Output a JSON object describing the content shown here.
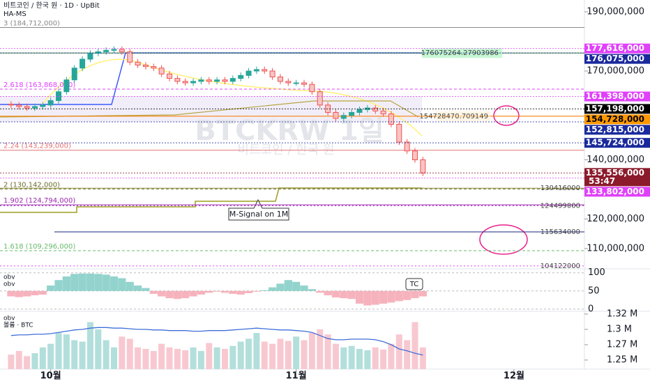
{
  "header": {
    "title": "비트코인 / 한국 원 · 1D · UpBit",
    "indicator": "HA-MS",
    "watermark": "BTCKRW 1일",
    "watermark_sub": "비트코인 / 한국 원"
  },
  "chart_data": {
    "type": "candlestick",
    "x": [
      -5,
      -4,
      -3,
      -2,
      -1,
      0,
      1,
      2,
      3,
      4,
      5,
      6,
      7,
      8,
      9,
      10,
      11,
      12,
      13,
      14,
      15,
      16,
      17,
      18,
      19,
      20,
      21,
      22,
      23,
      24,
      25,
      26,
      27,
      28,
      29,
      30,
      31,
      32,
      33,
      34,
      35,
      36,
      37,
      38,
      39,
      40,
      41,
      42,
      43,
      44,
      45,
      46,
      47
    ],
    "open": [
      158800000,
      158500000,
      158000000,
      157500000,
      158000000,
      158500000,
      160000000,
      163000000,
      167000000,
      171000000,
      174000000,
      176000000,
      176500000,
      177000000,
      177300000,
      176500000,
      173000000,
      172000000,
      171500000,
      171000000,
      169000000,
      167500000,
      166500000,
      166000000,
      166500000,
      167000000,
      166500000,
      167000000,
      166500000,
      167500000,
      168500000,
      170000000,
      170500000,
      170000000,
      168000000,
      166500000,
      166000000,
      166000000,
      165500000,
      163000000,
      158500000,
      156000000,
      154000000,
      155000000,
      156000000,
      157000000,
      157500000,
      156500000,
      155500000,
      152000000,
      146000000,
      143000000,
      140000000
    ],
    "high": [
      159800000,
      159500000,
      159000000,
      159000000,
      159500000,
      161000000,
      164000000,
      168000000,
      172000000,
      175000000,
      177000000,
      177500000,
      178000000,
      178300000,
      178300000,
      177500000,
      174000000,
      173000000,
      172500000,
      172000000,
      170000000,
      168500000,
      167500000,
      167500000,
      168000000,
      168000000,
      168000000,
      168000000,
      168500000,
      169500000,
      171000000,
      171500000,
      171500000,
      171000000,
      169000000,
      167500000,
      167000000,
      167000000,
      166500000,
      164000000,
      159500000,
      157000000,
      156000000,
      157000000,
      158000000,
      158500000,
      158500000,
      157500000,
      156500000,
      153000000,
      147000000,
      144000000,
      141000000
    ],
    "low": [
      157500000,
      157000000,
      156500000,
      156500000,
      157000000,
      157500000,
      159000000,
      162000000,
      166000000,
      170000000,
      173000000,
      175000000,
      175500000,
      176000000,
      175500000,
      172000000,
      171000000,
      170500000,
      170000000,
      168000000,
      166500000,
      165500000,
      165000000,
      165000000,
      165500000,
      165500000,
      165500000,
      165500000,
      165500000,
      166500000,
      167500000,
      169000000,
      169000000,
      167000000,
      165500000,
      165000000,
      165000000,
      164500000,
      162000000,
      157500000,
      155000000,
      153000000,
      153000000,
      154000000,
      155000000,
      156000000,
      155500000,
      154500000,
      151000000,
      145000000,
      142000000,
      139000000,
      134500000
    ],
    "close": [
      158500000,
      158000000,
      157500000,
      158000000,
      158500000,
      160000000,
      163000000,
      167000000,
      171000000,
      174000000,
      176000000,
      176500000,
      177000000,
      177300000,
      176500000,
      173000000,
      172000000,
      171500000,
      171000000,
      169000000,
      167500000,
      166500000,
      166000000,
      166500000,
      167000000,
      166500000,
      167000000,
      166500000,
      167500000,
      168500000,
      170000000,
      170500000,
      170000000,
      168000000,
      166500000,
      166000000,
      166000000,
      165500000,
      163000000,
      158500000,
      156000000,
      154000000,
      155000000,
      156000000,
      157000000,
      157500000,
      156500000,
      155500000,
      152000000,
      146000000,
      143000000,
      140000000,
      135500000
    ],
    "up_color": "#26a69a",
    "down_color": "#ef5350",
    "xlim": [
      -6.4,
      67.4
    ],
    "xticks": [
      {
        "value": 0,
        "label": "10월"
      },
      {
        "value": 31,
        "label": "11월"
      },
      {
        "value": 58.5,
        "label": "12월"
      }
    ],
    "ylim": [
      103400000,
      194000000
    ],
    "yticks": [
      {
        "value": 190000000,
        "label": "190,000,000"
      },
      {
        "value": 170000000,
        "label": "170,000,000"
      },
      {
        "value": 150000000,
        "label": "150,000,000"
      },
      {
        "value": 140000000,
        "label": "140,000,000"
      },
      {
        "value": 120000000,
        "label": "120,000,000"
      },
      {
        "value": 110000000,
        "label": "110,000,000"
      }
    ],
    "price_tags": [
      {
        "value": 177616000,
        "label": "177,616,000",
        "color": "#e040fb"
      },
      {
        "value": 176075000,
        "label": "176,075,000",
        "color": "#1a2a9c"
      },
      {
        "value": 161398000,
        "label": "161,398,000",
        "color": "#e040fb"
      },
      {
        "value": 157198000,
        "label": "157,198,000",
        "color": "#000000"
      },
      {
        "value": 154728000,
        "label": "154,728,000",
        "color": "#ff9800"
      },
      {
        "value": 152815000,
        "label": "152,815,000",
        "color": "#1a2a9c"
      },
      {
        "value": 145724000,
        "label": "145,724,000",
        "color": "#1a2a9c"
      },
      {
        "value": 135556000,
        "label": "135,556,000",
        "color": "#8b1a2b",
        "countdown": "53:47"
      },
      {
        "value": 133802000,
        "label": "133,802,000",
        "color": "#e040fb"
      }
    ],
    "line_labels": [
      176075264.27903986,
      154728470.709149,
      130416000,
      124499000,
      115634000,
      104122000
    ],
    "line_colors": [
      "#2e7d32",
      "#ef6c00",
      "#8d8d3a",
      "#9c27b0",
      "#1a237e",
      "#e040fb"
    ],
    "fib_levels": [
      {
        "value": 184712000,
        "label": "3 (184,712,000)"
      },
      {
        "value": 163868000,
        "label": "2.618 (163,868,000)"
      },
      {
        "value": 143239000,
        "label": "2.24 (143,239,000)"
      },
      {
        "value": 130142000,
        "label": "2 (130,142,000)"
      },
      {
        "value": 124794000,
        "label": "1.902 (124,794,000)"
      },
      {
        "value": 109296000,
        "label": "1.618 (109,296,000)"
      }
    ],
    "fib_colors": [
      "#888888",
      "#e040fb",
      "#e57373",
      "#6d6d2b",
      "#9c27b0",
      "#66bb6a"
    ],
    "annotation": "M-Signal on 1M",
    "oscillator": {
      "labels": [
        "obv",
        "obv"
      ],
      "ylim": [
        -6,
        111
      ],
      "yticks": [
        100,
        50,
        0
      ],
      "baseline": 50,
      "note": "TC",
      "values": [
        35,
        33,
        35,
        38,
        40,
        65,
        80,
        90,
        97,
        98,
        98,
        97,
        95,
        90,
        85,
        75,
        65,
        58,
        42,
        35,
        30,
        28,
        30,
        35,
        40,
        45,
        48,
        45,
        42,
        40,
        44,
        48,
        52,
        60,
        70,
        80,
        75,
        65,
        55,
        45,
        38,
        32,
        30,
        28,
        15,
        10,
        12,
        15,
        18,
        22,
        25,
        30,
        35
      ]
    },
    "volume": {
      "labels": [
        "obv",
        "볼륨 · BTC"
      ],
      "ylim": [
        1230200,
        1324500
      ],
      "yticks": [
        {
          "value": 1320000,
          "label": "1.32 M"
        },
        {
          "value": 1295000,
          "label": "1.3 M"
        },
        {
          "value": 1270000,
          "label": "1.27 M"
        },
        {
          "value": 1245000,
          "label": "1.25 M"
        }
      ],
      "bar_ylim": [
        0,
        8000
      ],
      "bars": [
        2000,
        2500,
        1800,
        2200,
        3000,
        3500,
        5000,
        4800,
        4000,
        3800,
        6500,
        5500,
        4000,
        3000,
        4500,
        4200,
        3000,
        2800,
        2500,
        3500,
        3000,
        2800,
        2600,
        3000,
        2500,
        3600,
        3000,
        2800,
        3200,
        3800,
        4200,
        5000,
        3800,
        3500,
        4200,
        3900,
        4500,
        4000,
        5000,
        5500,
        4800,
        3500,
        3000,
        3200,
        2800,
        2600,
        3000,
        2700,
        3500,
        4800,
        4000,
        6500,
        3000
      ],
      "obv": [
        1285000,
        1286000,
        1286000,
        1287000,
        1287000,
        1288000,
        1290000,
        1292000,
        1294000,
        1295000,
        1297000,
        1298000,
        1298000,
        1297000,
        1297000,
        1296000,
        1295000,
        1295000,
        1294000,
        1294000,
        1293000,
        1293000,
        1293000,
        1292000,
        1292000,
        1293000,
        1293000,
        1293000,
        1294000,
        1295000,
        1296000,
        1297000,
        1296000,
        1295000,
        1294000,
        1294000,
        1293000,
        1292000,
        1290000,
        1285000,
        1280000,
        1278000,
        1278000,
        1279000,
        1279000,
        1279000,
        1278000,
        1275000,
        1270000,
        1263000,
        1260000,
        1256000,
        1253000
      ]
    }
  }
}
